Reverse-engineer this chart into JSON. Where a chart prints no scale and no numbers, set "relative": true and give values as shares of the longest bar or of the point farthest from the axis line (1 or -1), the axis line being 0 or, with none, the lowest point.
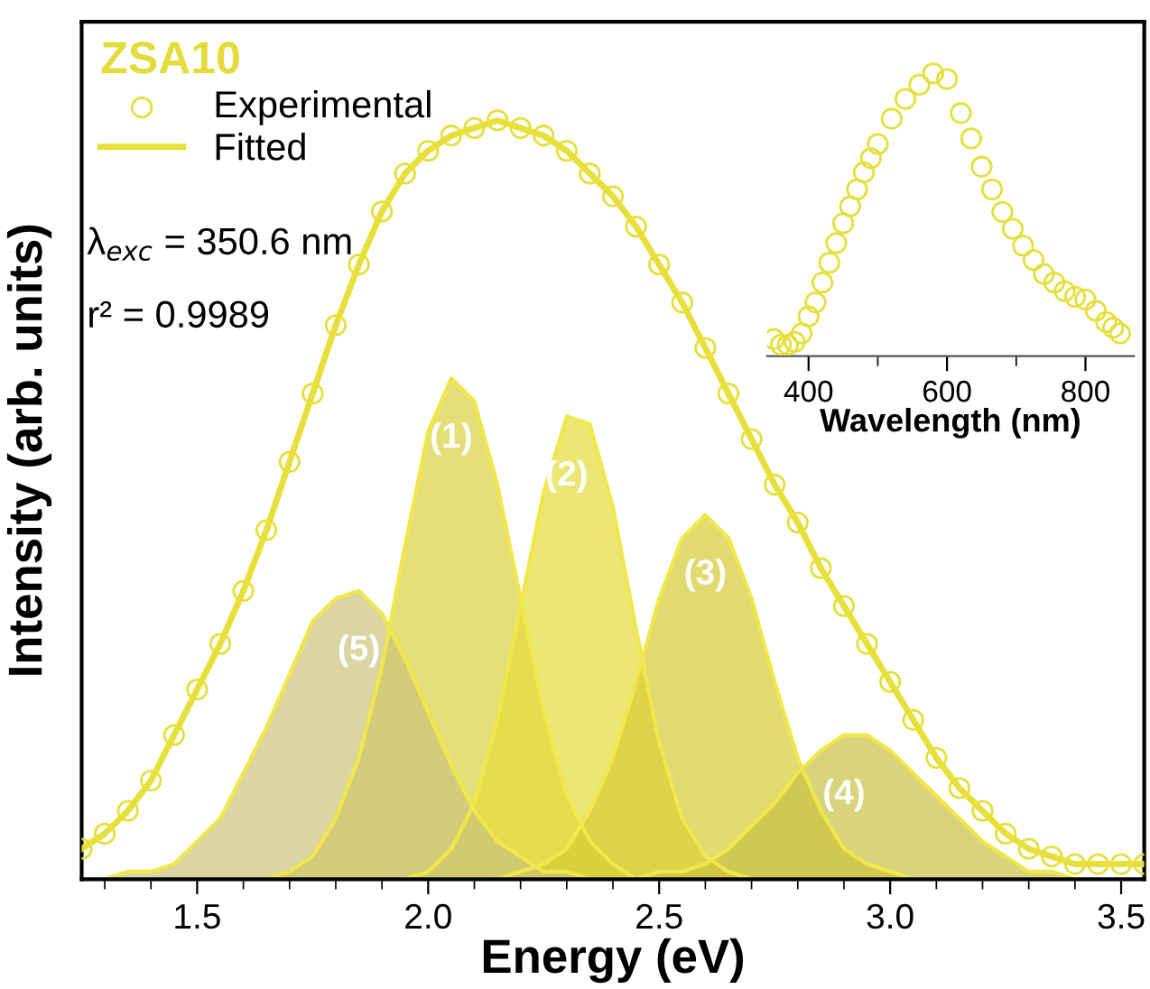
{
  "chart_data": [
    {
      "type": "line",
      "relative": true,
      "legend": "top left",
      "legend_title": "ZSA10",
      "xlabel": "Energy (eV)",
      "ylabel": "Intensity (arb. units)",
      "tick_labels": "x",
      "grid": false,
      "xlim": [
        1.25,
        3.55
      ],
      "xticks": [
        {
          "value": 1.3,
          "label": null
        },
        {
          "value": 1.4,
          "label": null
        },
        1.5,
        {
          "value": 1.6,
          "label": null
        },
        {
          "value": 1.7,
          "label": null
        },
        {
          "value": 1.8,
          "label": null
        },
        {
          "value": 1.9,
          "label": null
        },
        {
          "value": 2,
          "label": "2.0"
        },
        {
          "value": 2.1,
          "label": null
        },
        {
          "value": 2.2,
          "label": null
        },
        {
          "value": 2.3,
          "label": null
        },
        {
          "value": 2.4,
          "label": null
        },
        2.5,
        {
          "value": 2.6,
          "label": null
        },
        {
          "value": 2.7,
          "label": null
        },
        {
          "value": 2.8,
          "label": null
        },
        {
          "value": 2.9,
          "label": null
        },
        {
          "value": 3,
          "label": "3.0"
        },
        {
          "value": 3.1,
          "label": null
        },
        {
          "value": 3.2,
          "label": null
        },
        {
          "value": 3.3,
          "label": null
        },
        {
          "value": 3.4,
          "label": null
        },
        3.5
      ],
      "x": [
        1.25,
        1.3,
        1.35,
        1.4,
        1.45,
        1.5,
        1.55,
        1.6,
        1.65,
        1.7,
        1.75,
        1.8,
        1.85,
        1.9,
        1.95,
        2.0,
        2.05,
        2.1,
        2.15,
        2.2,
        2.25,
        2.3,
        2.35,
        2.4,
        2.45,
        2.5,
        2.55,
        2.6,
        2.65,
        2.7,
        2.75,
        2.8,
        2.85,
        2.9,
        2.95,
        3.0,
        3.05,
        3.1,
        3.15,
        3.2,
        3.25,
        3.3,
        3.35,
        3.4,
        3.45,
        3.5,
        3.55
      ],
      "series": [
        {
          "name": "Experimental",
          "type": "scatter",
          "marker": "circle",
          "color": "#e6df3c",
          "values": [
            0.04,
            0.06,
            0.09,
            0.13,
            0.19,
            0.25,
            0.31,
            0.38,
            0.46,
            0.55,
            0.64,
            0.73,
            0.81,
            0.88,
            0.93,
            0.96,
            0.98,
            0.99,
            1.0,
            0.99,
            0.98,
            0.96,
            0.93,
            0.9,
            0.86,
            0.81,
            0.76,
            0.7,
            0.64,
            0.58,
            0.52,
            0.47,
            0.41,
            0.36,
            0.31,
            0.26,
            0.21,
            0.16,
            0.12,
            0.09,
            0.06,
            0.04,
            0.03,
            0.02,
            0.02,
            0.02,
            0.02
          ]
        },
        {
          "name": "Fitted",
          "type": "line",
          "line_style": "solid",
          "color": "#e8e03a",
          "values": [
            0.04,
            0.06,
            0.09,
            0.13,
            0.19,
            0.25,
            0.31,
            0.38,
            0.46,
            0.55,
            0.64,
            0.73,
            0.81,
            0.88,
            0.93,
            0.96,
            0.98,
            0.99,
            1.0,
            0.99,
            0.98,
            0.96,
            0.93,
            0.9,
            0.86,
            0.81,
            0.76,
            0.7,
            0.64,
            0.58,
            0.52,
            0.47,
            0.41,
            0.36,
            0.31,
            0.26,
            0.21,
            0.16,
            0.12,
            0.09,
            0.06,
            0.04,
            0.03,
            0.02,
            0.02,
            0.02,
            0.02
          ]
        },
        {
          "type": "area",
          "color": "#d8d040",
          "x": [
            1.65,
            1.7,
            1.75,
            1.8,
            1.85,
            1.9,
            1.95,
            2.0,
            2.05,
            2.1,
            2.15,
            2.2,
            2.25,
            2.3,
            2.35,
            2.4,
            2.45
          ],
          "values": [
            0,
            0.01,
            0.03,
            0.08,
            0.16,
            0.28,
            0.44,
            0.59,
            0.66,
            0.63,
            0.52,
            0.37,
            0.22,
            0.11,
            0.05,
            0.02,
            0
          ]
        },
        {
          "type": "area",
          "color": "#e4dc3a",
          "x": [
            1.95,
            2.0,
            2.05,
            2.1,
            2.15,
            2.2,
            2.25,
            2.3,
            2.35,
            2.4,
            2.45,
            2.5,
            2.55,
            2.6,
            2.65,
            2.7
          ],
          "values": [
            0,
            0.01,
            0.04,
            0.1,
            0.21,
            0.36,
            0.51,
            0.61,
            0.6,
            0.49,
            0.33,
            0.18,
            0.08,
            0.03,
            0.01,
            0
          ]
        },
        {
          "type": "area",
          "color": "#d4cb34",
          "x": [
            2.15,
            2.2,
            2.25,
            2.3,
            2.35,
            2.4,
            2.45,
            2.5,
            2.55,
            2.6,
            2.65,
            2.7,
            2.75,
            2.8,
            2.85,
            2.9,
            2.95,
            3.0,
            3.05
          ],
          "values": [
            0,
            0.01,
            0.02,
            0.04,
            0.09,
            0.16,
            0.26,
            0.37,
            0.45,
            0.48,
            0.45,
            0.37,
            0.26,
            0.16,
            0.09,
            0.04,
            0.02,
            0.01,
            0
          ]
        },
        {
          "type": "area",
          "color": "#c9c045",
          "x": [
            2.4,
            2.45,
            2.5,
            2.55,
            2.6,
            2.65,
            2.7,
            2.75,
            2.8,
            2.85,
            2.9,
            2.95,
            3.0,
            3.05,
            3.1,
            3.15,
            3.2,
            3.25,
            3.3,
            3.35,
            3.4,
            3.45
          ],
          "values": [
            0,
            0,
            0.01,
            0.01,
            0.02,
            0.04,
            0.07,
            0.1,
            0.14,
            0.17,
            0.19,
            0.19,
            0.17,
            0.14,
            0.11,
            0.08,
            0.05,
            0.03,
            0.01,
            0.01,
            0,
            0
          ]
        },
        {
          "type": "area",
          "color": "#cbc37a",
          "x": [
            1.25,
            1.3,
            1.35,
            1.4,
            1.45,
            1.5,
            1.55,
            1.6,
            1.65,
            1.7,
            1.75,
            1.8,
            1.85,
            1.9,
            1.95,
            2.0,
            2.05,
            2.1,
            2.15,
            2.2,
            2.25,
            2.3,
            2.35,
            2.4
          ],
          "values": [
            0,
            0,
            0.01,
            0.01,
            0.02,
            0.05,
            0.08,
            0.14,
            0.2,
            0.27,
            0.34,
            0.37,
            0.38,
            0.35,
            0.29,
            0.22,
            0.15,
            0.09,
            0.05,
            0.03,
            0.01,
            0.01,
            0,
            0
          ]
        }
      ],
      "annotations": [
        "λ$_{exc}$ = 350.6 nm",
        "r² = 0.9989",
        {
          "text": "(1)",
          "x": 2.05,
          "y": 0.66
        },
        {
          "text": "(2)",
          "x": 2.3,
          "y": 0.61
        },
        {
          "text": "(3)",
          "x": 2.6,
          "y": 0.48
        },
        {
          "text": "(4)",
          "x": 2.9,
          "y": 0.19
        },
        {
          "text": "(5)",
          "x": 1.85,
          "y": 0.38
        }
      ]
    },
    {
      "type": "scatter",
      "relative": true,
      "xlabel": "Wavelength (nm)",
      "tick_labels": "x",
      "grid": false,
      "marker": "circle",
      "xlim": [
        340,
        870
      ],
      "xticks": [
        400,
        {
          "value": 500,
          "label": null
        },
        600,
        {
          "value": 700,
          "label": null
        },
        800
      ],
      "x": [
        350,
        360,
        370,
        380,
        390,
        400,
        410,
        420,
        430,
        440,
        450,
        460,
        470,
        480,
        490,
        500,
        520,
        540,
        560,
        580,
        600,
        620,
        635,
        650,
        665,
        680,
        695,
        710,
        725,
        740,
        755,
        770,
        785,
        800,
        815,
        830,
        840,
        850
      ],
      "series": [
        {
          "color": "#e6df3c",
          "values": [
            0.06,
            0.04,
            0.04,
            0.05,
            0.08,
            0.14,
            0.19,
            0.26,
            0.33,
            0.4,
            0.47,
            0.53,
            0.59,
            0.65,
            0.7,
            0.75,
            0.84,
            0.91,
            0.96,
            1.0,
            0.98,
            0.86,
            0.77,
            0.67,
            0.59,
            0.51,
            0.45,
            0.39,
            0.34,
            0.29,
            0.26,
            0.23,
            0.21,
            0.2,
            0.16,
            0.12,
            0.1,
            0.08
          ]
        }
      ]
    }
  ]
}
